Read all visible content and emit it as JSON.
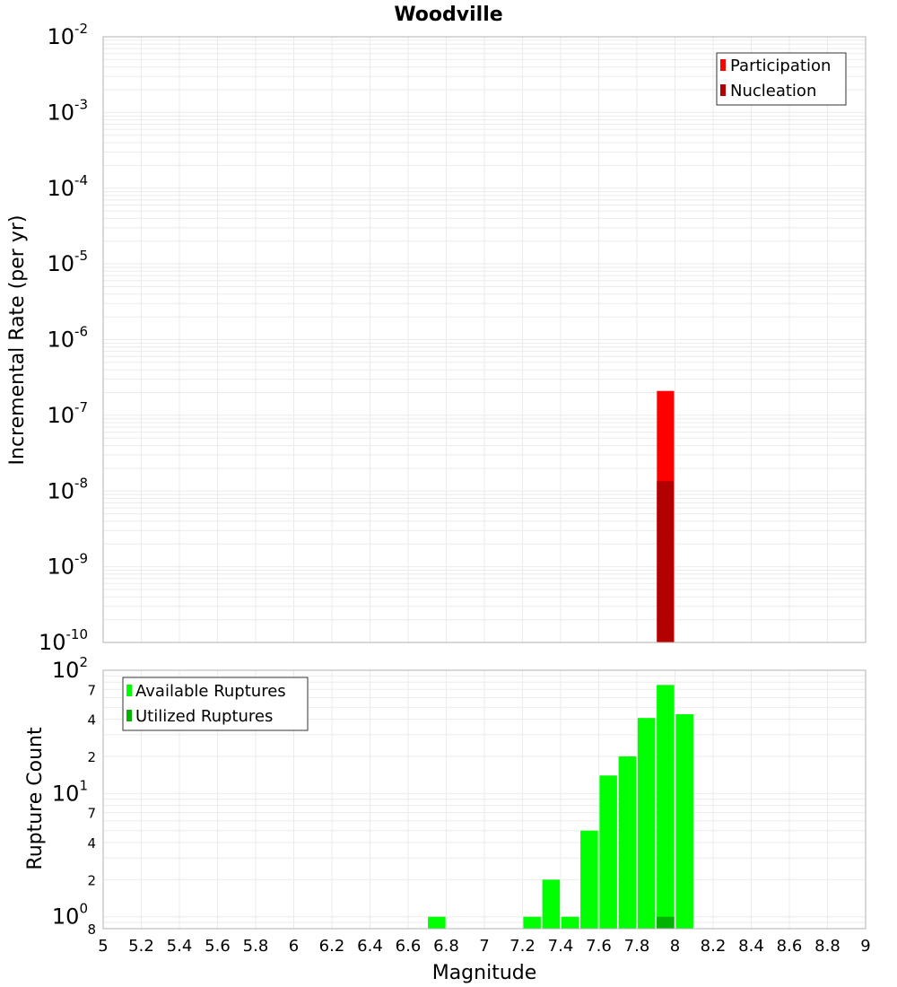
{
  "chart_data": [
    {
      "type": "bar",
      "title": "Woodville",
      "xlabel": "",
      "ylabel": "Incremental Rate (per yr)",
      "y_scale": "log",
      "ylim": [
        1e-10,
        0.01
      ],
      "xlim": [
        5,
        9
      ],
      "grid": true,
      "legend_position": "top-right",
      "bar_width": 0.1,
      "series": [
        {
          "name": "Participation",
          "color": "#ff0000",
          "points": [
            {
              "x": 7.95,
              "y": 2.1e-07
            }
          ]
        },
        {
          "name": "Nucleation",
          "color": "#b30000",
          "points": [
            {
              "x": 7.95,
              "y": 1.35e-08
            }
          ]
        }
      ],
      "y_ticks": [
        {
          "base": "10",
          "exp": "-2"
        },
        {
          "base": "10",
          "exp": "-3"
        },
        {
          "base": "10",
          "exp": "-4"
        },
        {
          "base": "10",
          "exp": "-5"
        },
        {
          "base": "10",
          "exp": "-6"
        },
        {
          "base": "10",
          "exp": "-7"
        },
        {
          "base": "10",
          "exp": "-8"
        },
        {
          "base": "10",
          "exp": "-9"
        },
        {
          "base": "10",
          "exp": "-10"
        }
      ]
    },
    {
      "type": "bar",
      "title": "",
      "xlabel": "Magnitude",
      "ylabel": "Rupture Count",
      "y_scale": "log",
      "ylim": [
        0.8,
        100
      ],
      "xlim": [
        5,
        9
      ],
      "grid": true,
      "legend_position": "top-left",
      "bar_width": 0.1,
      "series": [
        {
          "name": "Available Ruptures",
          "color": "#00ff00",
          "points": [
            {
              "x": 6.75,
              "y": 1
            },
            {
              "x": 7.25,
              "y": 1
            },
            {
              "x": 7.35,
              "y": 2
            },
            {
              "x": 7.45,
              "y": 1
            },
            {
              "x": 7.55,
              "y": 5
            },
            {
              "x": 7.65,
              "y": 14
            },
            {
              "x": 7.75,
              "y": 20
            },
            {
              "x": 7.85,
              "y": 41
            },
            {
              "x": 7.95,
              "y": 76
            },
            {
              "x": 8.05,
              "y": 44
            }
          ]
        },
        {
          "name": "Utilized Ruptures",
          "color": "#00b300",
          "points": [
            {
              "x": 7.95,
              "y": 1
            }
          ]
        }
      ],
      "y_ticks": [
        {
          "value": 100,
          "base": "10",
          "exp": "2",
          "major": true
        },
        {
          "value": 70,
          "label": "7"
        },
        {
          "value": 40,
          "label": "4"
        },
        {
          "value": 20,
          "label": "2"
        },
        {
          "value": 10,
          "base": "10",
          "exp": "1",
          "major": true
        },
        {
          "value": 7,
          "label": "7"
        },
        {
          "value": 4,
          "label": "4"
        },
        {
          "value": 2,
          "label": "2"
        },
        {
          "value": 1,
          "base": "10",
          "exp": "0",
          "major": true
        },
        {
          "value": 0.8,
          "label": "8"
        }
      ],
      "x_ticks": [
        "5",
        "5.2",
        "5.4",
        "5.6",
        "5.8",
        "6",
        "6.2",
        "6.4",
        "6.6",
        "6.8",
        "7",
        "7.2",
        "7.4",
        "7.6",
        "7.8",
        "8",
        "8.2",
        "8.4",
        "8.6",
        "8.8",
        "9"
      ]
    }
  ]
}
